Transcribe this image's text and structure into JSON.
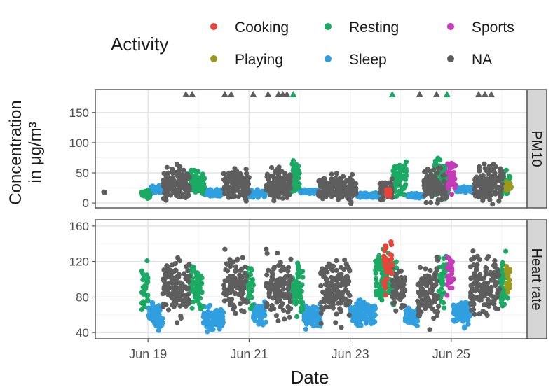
{
  "legend": {
    "title": "Activity",
    "items": [
      {
        "label": "Cooking",
        "color": "#e8443a"
      },
      {
        "label": "Resting",
        "color": "#1aaa63"
      },
      {
        "label": "Sports",
        "color": "#c43ab8"
      },
      {
        "label": "Playing",
        "color": "#9a9a1c"
      },
      {
        "label": "Sleep",
        "color": "#2f9fe0"
      },
      {
        "label": "NA",
        "color": "#5e5e5e"
      }
    ]
  },
  "chart_data": {
    "type": "scatter",
    "xlabel": "Date",
    "ylabel_lines": [
      "Concentration",
      "in μg/m³"
    ],
    "x_ticks": [
      "Jun 19",
      "Jun 21",
      "Jun 23",
      "Jun 25"
    ],
    "xlim": [
      "2023-06-17T23:00",
      "2023-06-26T12:00"
    ],
    "grid": true,
    "legend_placement": "top",
    "panels": [
      {
        "strip": "PM10",
        "ylim": [
          -8,
          188
        ],
        "y_ticks": [
          0,
          50,
          100,
          150
        ],
        "capped_note": "values above 180 shown as triangles at 180",
        "segments": [
          {
            "activity": "NA",
            "start": "2023-06-18T03:00",
            "end": "2023-06-18T03:30",
            "level": 18,
            "spread": 1
          },
          {
            "activity": "Resting",
            "start": "2023-06-18T21:00",
            "end": "2023-06-19T01:00",
            "level": 14,
            "spread": 10
          },
          {
            "activity": "Sleep",
            "start": "2023-06-19T01:00",
            "end": "2023-06-19T07:00",
            "level": 22,
            "spread": 9
          },
          {
            "activity": "NA",
            "start": "2023-06-19T07:00",
            "end": "2023-06-19T20:00",
            "level": 32,
            "spread": 38
          },
          {
            "activity": "Resting",
            "start": "2023-06-19T20:00",
            "end": "2023-06-20T03:00",
            "level": 32,
            "spread": 30
          },
          {
            "activity": "Sleep",
            "start": "2023-06-20T03:00",
            "end": "2023-06-20T12:00",
            "level": 17,
            "spread": 8
          },
          {
            "activity": "NA",
            "start": "2023-06-20T12:00",
            "end": "2023-06-21T00:00",
            "level": 32,
            "spread": 40
          },
          {
            "activity": "Sleep",
            "start": "2023-06-21T00:00",
            "end": "2023-06-21T08:00",
            "level": 16,
            "spread": 8
          },
          {
            "activity": "NA",
            "start": "2023-06-21T08:00",
            "end": "2023-06-21T20:00",
            "level": 30,
            "spread": 40
          },
          {
            "activity": "Resting",
            "start": "2023-06-21T20:00",
            "end": "2023-06-22T00:00",
            "level": 40,
            "spread": 45
          },
          {
            "activity": "Sleep",
            "start": "2023-06-22T00:00",
            "end": "2023-06-22T09:00",
            "level": 19,
            "spread": 4
          },
          {
            "activity": "NA",
            "start": "2023-06-22T09:00",
            "end": "2023-06-23T03:00",
            "level": 25,
            "spread": 30
          },
          {
            "activity": "Sleep",
            "start": "2023-06-23T03:00",
            "end": "2023-06-23T14:00",
            "level": 13,
            "spread": 5
          },
          {
            "activity": "NA",
            "start": "2023-06-23T14:00",
            "end": "2023-06-23T20:00",
            "level": 22,
            "spread": 22
          },
          {
            "activity": "Resting",
            "start": "2023-06-23T20:00",
            "end": "2023-06-24T03:00",
            "level": 38,
            "spread": 45
          },
          {
            "activity": "Cooking",
            "start": "2023-06-23T17:00",
            "end": "2023-06-23T19:00",
            "level": 18,
            "spread": 12
          },
          {
            "activity": "Sleep",
            "start": "2023-06-24T03:00",
            "end": "2023-06-24T11:00",
            "level": 12,
            "spread": 5
          },
          {
            "activity": "NA",
            "start": "2023-06-24T11:00",
            "end": "2023-06-24T22:00",
            "level": 28,
            "spread": 38
          },
          {
            "activity": "Resting",
            "start": "2023-06-24T16:00",
            "end": "2023-06-24T23:00",
            "level": 40,
            "spread": 48
          },
          {
            "activity": "Sports",
            "start": "2023-06-24T22:00",
            "end": "2023-06-25T02:00",
            "level": 45,
            "spread": 40
          },
          {
            "activity": "Sleep",
            "start": "2023-06-25T02:00",
            "end": "2023-06-25T11:00",
            "level": 22,
            "spread": 6
          },
          {
            "activity": "NA",
            "start": "2023-06-25T11:00",
            "end": "2023-06-26T01:00",
            "level": 34,
            "spread": 42
          },
          {
            "activity": "Resting",
            "start": "2023-06-26T00:00",
            "end": "2023-06-26T04:00",
            "level": 30,
            "spread": 28
          },
          {
            "activity": "Playing",
            "start": "2023-06-26T02:00",
            "end": "2023-06-26T04:30",
            "level": 28,
            "spread": 10
          }
        ],
        "capped_points": [
          {
            "activity": "NA",
            "times": [
              "2023-06-19T18:00",
              "2023-06-19T21:00",
              "2023-06-20T12:30",
              "2023-06-20T15:30",
              "2023-06-21T02:00",
              "2023-06-21T09:00",
              "2023-06-21T14:00",
              "2023-06-21T16:00",
              "2023-06-21T18:00",
              "2023-06-24T09:00",
              "2023-06-24T17:00",
              "2023-06-25T13:00",
              "2023-06-25T16:00",
              "2023-06-25T19:00"
            ]
          },
          {
            "activity": "Resting",
            "times": [
              "2023-06-21T21:00",
              "2023-06-23T20:00",
              "2023-06-24T22:00"
            ]
          }
        ]
      },
      {
        "strip": "Heart rate",
        "ylim": [
          33,
          167
        ],
        "y_ticks": [
          40,
          80,
          120,
          160
        ],
        "segments": [
          {
            "activity": "Resting",
            "start": "2023-06-18T21:00",
            "end": "2023-06-19T00:00",
            "level": 90,
            "spread": 38
          },
          {
            "activity": "Sleep",
            "start": "2023-06-19T00:00",
            "end": "2023-06-19T07:00",
            "level": 58,
            "spread": 22
          },
          {
            "activity": "NA",
            "start": "2023-06-19T07:00",
            "end": "2023-06-19T20:00",
            "level": 90,
            "spread": 45
          },
          {
            "activity": "Resting",
            "start": "2023-06-19T20:00",
            "end": "2023-06-20T02:00",
            "level": 90,
            "spread": 38
          },
          {
            "activity": "Sleep",
            "start": "2023-06-20T02:00",
            "end": "2023-06-20T12:00",
            "level": 55,
            "spread": 18
          },
          {
            "activity": "NA",
            "start": "2023-06-20T12:00",
            "end": "2023-06-20T23:00",
            "level": 95,
            "spread": 45
          },
          {
            "activity": "Resting",
            "start": "2023-06-20T23:00",
            "end": "2023-06-21T02:00",
            "level": 90,
            "spread": 42
          },
          {
            "activity": "Sleep",
            "start": "2023-06-21T02:00",
            "end": "2023-06-21T08:00",
            "level": 60,
            "spread": 18
          },
          {
            "activity": "NA",
            "start": "2023-06-21T08:00",
            "end": "2023-06-21T20:00",
            "level": 92,
            "spread": 48
          },
          {
            "activity": "Resting",
            "start": "2023-06-21T20:00",
            "end": "2023-06-22T02:00",
            "level": 92,
            "spread": 42
          },
          {
            "activity": "Sleep",
            "start": "2023-06-22T02:00",
            "end": "2023-06-22T10:00",
            "level": 58,
            "spread": 18
          },
          {
            "activity": "NA",
            "start": "2023-06-22T10:00",
            "end": "2023-06-23T00:00",
            "level": 88,
            "spread": 45
          },
          {
            "activity": "Sleep",
            "start": "2023-06-23T00:00",
            "end": "2023-06-23T12:00",
            "level": 62,
            "spread": 20
          },
          {
            "activity": "Resting",
            "start": "2023-06-23T12:00",
            "end": "2023-06-23T22:00",
            "level": 100,
            "spread": 42
          },
          {
            "activity": "Cooking",
            "start": "2023-06-23T16:00",
            "end": "2023-06-23T20:00",
            "level": 110,
            "spread": 40
          },
          {
            "activity": "NA",
            "start": "2023-06-23T20:00",
            "end": "2023-06-24T02:00",
            "level": 90,
            "spread": 35
          },
          {
            "activity": "Sleep",
            "start": "2023-06-24T02:00",
            "end": "2023-06-24T08:00",
            "level": 58,
            "spread": 15
          },
          {
            "activity": "NA",
            "start": "2023-06-24T08:00",
            "end": "2023-06-24T18:00",
            "level": 85,
            "spread": 45
          },
          {
            "activity": "Resting",
            "start": "2023-06-24T18:00",
            "end": "2023-06-24T22:00",
            "level": 100,
            "spread": 45
          },
          {
            "activity": "Sports",
            "start": "2023-06-24T22:00",
            "end": "2023-06-25T01:00",
            "level": 110,
            "spread": 40
          },
          {
            "activity": "Sleep",
            "start": "2023-06-25T01:00",
            "end": "2023-06-25T09:00",
            "level": 62,
            "spread": 20
          },
          {
            "activity": "NA",
            "start": "2023-06-25T09:00",
            "end": "2023-06-25T23:00",
            "level": 92,
            "spread": 48
          },
          {
            "activity": "Resting",
            "start": "2023-06-25T23:00",
            "end": "2023-06-26T03:00",
            "level": 95,
            "spread": 42
          },
          {
            "activity": "Playing",
            "start": "2023-06-26T02:00",
            "end": "2023-06-26T04:00",
            "level": 100,
            "spread": 30
          }
        ]
      }
    ]
  }
}
